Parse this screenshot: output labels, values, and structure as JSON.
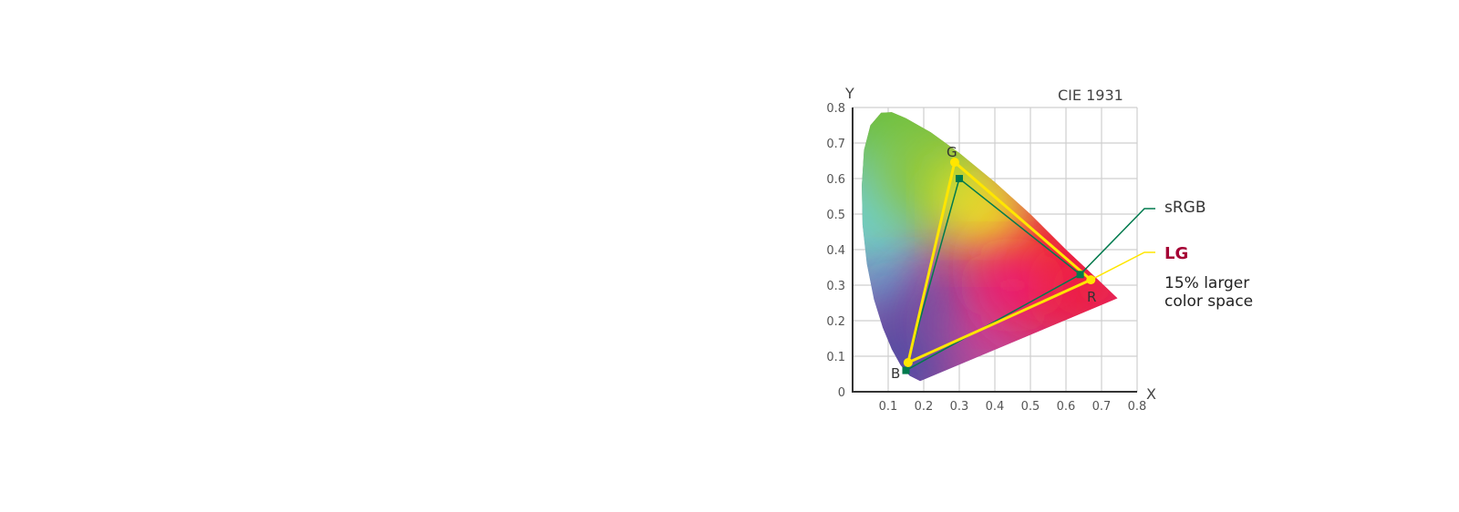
{
  "chart_data": {
    "type": "line",
    "title": "CIE 1931",
    "xlabel": "X",
    "ylabel": "Y",
    "xlim": [
      0,
      0.8
    ],
    "ylim": [
      0,
      0.8
    ],
    "x_ticks": [
      "0.1",
      "0.2",
      "0.3",
      "0.4",
      "0.5",
      "0.6",
      "0.7",
      "0.8"
    ],
    "y_ticks": [
      "0",
      "0.1",
      "0.2",
      "0.3",
      "0.4",
      "0.5",
      "0.6",
      "0.7",
      "0.8"
    ],
    "grid": true,
    "series": [
      {
        "name": "sRGB",
        "color": "#007a4d",
        "points": {
          "R": [
            0.64,
            0.33
          ],
          "G": [
            0.3,
            0.6
          ],
          "B": [
            0.15,
            0.06
          ]
        }
      },
      {
        "name": "LG",
        "color": "#ffe600",
        "points": {
          "R": [
            0.67,
            0.315
          ],
          "G": [
            0.287,
            0.646
          ],
          "B": [
            0.156,
            0.082
          ]
        }
      }
    ],
    "vertex_labels": {
      "R": "R",
      "G": "G",
      "B": "B"
    },
    "legend": {
      "srgb": "sRGB",
      "lg": "LG",
      "lg_note_1": "15% larger",
      "lg_note_2": "color space",
      "lg_color": "#a50034",
      "placement": "right"
    }
  }
}
